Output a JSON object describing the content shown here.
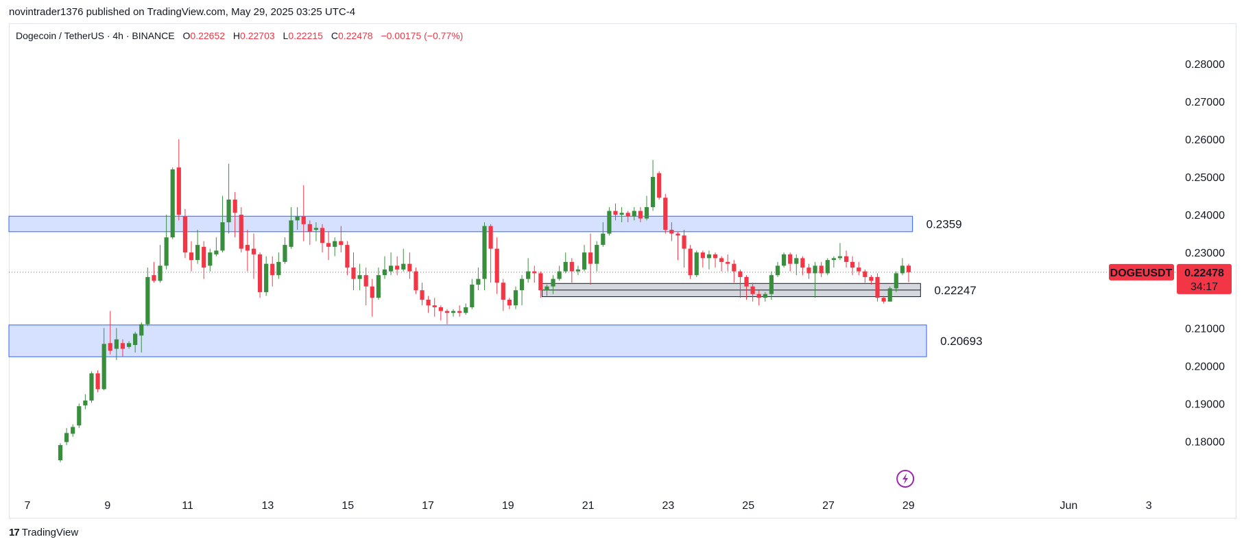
{
  "header": {
    "published_line": "novintrader1376 published on TradingView.com, May 29, 2025 03:25 UTC-4"
  },
  "legend": {
    "symbol": "Dogecoin / TetherUS · 4h · BINANCE",
    "o_label": "O",
    "o_value": "0.22652",
    "h_label": "H",
    "h_value": "0.22703",
    "l_label": "L",
    "l_value": "0.22215",
    "c_label": "C",
    "c_value": "0.22478",
    "change": "−0.00175 (−0.77%)"
  },
  "footer": {
    "brand": "TradingView"
  },
  "colors": {
    "up": "#388e3c",
    "down": "#f23645",
    "zone_fill": "#d6e0ff",
    "zone_border": "#2962ff",
    "gray_zone": "#d1d4dc"
  },
  "chart_data": {
    "type": "candlestick",
    "symbol": "DOGEUSDT",
    "timeframe": "4h",
    "ylim": [
      0.173,
      0.2845
    ],
    "y_ticks": [
      "0.28000",
      "0.27000",
      "0.26000",
      "0.25000",
      "0.24000",
      "0.23000",
      "0.21000",
      "0.20000",
      "0.19000",
      "0.18000"
    ],
    "y_tick_values": [
      0.28,
      0.27,
      0.26,
      0.25,
      0.24,
      0.23,
      0.21,
      0.2,
      0.19,
      0.18
    ],
    "x_ticks": [
      "7",
      "9",
      "11",
      "13",
      "15",
      "17",
      "19",
      "21",
      "23",
      "25",
      "27",
      "29",
      "Jun",
      "3"
    ],
    "x_tick_days": [
      7,
      9,
      11,
      13,
      15,
      17,
      19,
      21,
      23,
      25,
      27,
      29,
      33,
      35
    ],
    "last_price": {
      "symbol_label": "DOGEUSDT",
      "price": "0.22478",
      "countdown": "34:17",
      "value": 0.22478
    },
    "zones": [
      {
        "label": "0.2359",
        "top": 0.2396,
        "bottom": 0.2355,
        "start_day": 6.5,
        "end_day": 29.1,
        "style": "blue"
      },
      {
        "label": "0.22247",
        "top": 0.2218,
        "bottom": 0.2183,
        "start_day": 19.85,
        "end_day": 29.3,
        "style": "gray"
      },
      {
        "label": "0.20693",
        "top": 0.2108,
        "bottom": 0.2024,
        "start_day": 6.5,
        "end_day": 29.45,
        "style": "blue"
      }
    ],
    "candles": [
      [
        0.175,
        0.179,
        0.1745,
        0.1795
      ],
      [
        0.1798,
        0.1822,
        0.179,
        0.1835
      ],
      [
        0.182,
        0.1838,
        0.1812,
        0.1845
      ],
      [
        0.1842,
        0.1893,
        0.1835,
        0.19
      ],
      [
        0.1895,
        0.1908,
        0.1885,
        0.1925
      ],
      [
        0.1908,
        0.198,
        0.1902,
        0.1985
      ],
      [
        0.198,
        0.1938,
        0.193,
        0.1988
      ],
      [
        0.1938,
        0.2058,
        0.1935,
        0.21
      ],
      [
        0.206,
        0.204,
        0.203,
        0.2145
      ],
      [
        0.2045,
        0.207,
        0.2015,
        0.21
      ],
      [
        0.206,
        0.2045,
        0.2025,
        0.207
      ],
      [
        0.205,
        0.206,
        0.2045,
        0.2065
      ],
      [
        0.2055,
        0.2085,
        0.2035,
        0.209
      ],
      [
        0.208,
        0.211,
        0.2035,
        0.2115
      ],
      [
        0.211,
        0.2235,
        0.2105,
        0.226
      ],
      [
        0.224,
        0.2225,
        0.222,
        0.2275
      ],
      [
        0.2225,
        0.2265,
        0.222,
        0.232
      ],
      [
        0.2265,
        0.234,
        0.2255,
        0.24
      ],
      [
        0.234,
        0.252,
        0.2335,
        0.2525
      ],
      [
        0.2525,
        0.24,
        0.2385,
        0.26
      ],
      [
        0.2395,
        0.23,
        0.2285,
        0.2415
      ],
      [
        0.23,
        0.228,
        0.225,
        0.233
      ],
      [
        0.228,
        0.232,
        0.227,
        0.236
      ],
      [
        0.2315,
        0.226,
        0.223,
        0.233
      ],
      [
        0.2265,
        0.23,
        0.225,
        0.231
      ],
      [
        0.2295,
        0.2305,
        0.229,
        0.234
      ],
      [
        0.2305,
        0.238,
        0.23,
        0.245
      ],
      [
        0.238,
        0.244,
        0.235,
        0.2535
      ],
      [
        0.244,
        0.2405,
        0.234,
        0.246
      ],
      [
        0.24,
        0.231,
        0.23,
        0.242
      ],
      [
        0.232,
        0.2305,
        0.225,
        0.236
      ],
      [
        0.231,
        0.2295,
        0.223,
        0.235
      ],
      [
        0.2295,
        0.2195,
        0.218,
        0.23
      ],
      [
        0.2195,
        0.227,
        0.2185,
        0.229
      ],
      [
        0.227,
        0.224,
        0.221,
        0.229
      ],
      [
        0.224,
        0.2275,
        0.223,
        0.23
      ],
      [
        0.2275,
        0.232,
        0.227,
        0.234
      ],
      [
        0.2315,
        0.2385,
        0.231,
        0.242
      ],
      [
        0.2385,
        0.2395,
        0.236,
        0.242
      ],
      [
        0.2395,
        0.2375,
        0.233,
        0.2478
      ],
      [
        0.2375,
        0.2355,
        0.232,
        0.2385
      ],
      [
        0.236,
        0.2365,
        0.233,
        0.238
      ],
      [
        0.2365,
        0.2325,
        0.23,
        0.2375
      ],
      [
        0.2325,
        0.2315,
        0.228,
        0.2355
      ],
      [
        0.2315,
        0.233,
        0.229,
        0.234
      ],
      [
        0.233,
        0.232,
        0.23,
        0.237
      ],
      [
        0.232,
        0.226,
        0.224,
        0.233
      ],
      [
        0.226,
        0.223,
        0.22,
        0.23
      ],
      [
        0.223,
        0.224,
        0.22,
        0.227
      ],
      [
        0.224,
        0.221,
        0.216,
        0.226
      ],
      [
        0.221,
        0.218,
        0.213,
        0.223
      ],
      [
        0.218,
        0.224,
        0.2175,
        0.226
      ],
      [
        0.224,
        0.2255,
        0.223,
        0.229
      ],
      [
        0.225,
        0.2265,
        0.224,
        0.23
      ],
      [
        0.2265,
        0.2255,
        0.224,
        0.229
      ],
      [
        0.2255,
        0.227,
        0.225,
        0.231
      ],
      [
        0.227,
        0.225,
        0.223,
        0.23
      ],
      [
        0.225,
        0.22,
        0.219,
        0.226
      ],
      [
        0.22,
        0.2175,
        0.216,
        0.222
      ],
      [
        0.2175,
        0.216,
        0.214,
        0.2185
      ],
      [
        0.216,
        0.2155,
        0.213,
        0.218
      ],
      [
        0.2155,
        0.2145,
        0.212,
        0.216
      ],
      [
        0.2145,
        0.214,
        0.211,
        0.215
      ],
      [
        0.214,
        0.2145,
        0.213,
        0.215
      ],
      [
        0.2145,
        0.214,
        0.213,
        0.216
      ],
      [
        0.214,
        0.2155,
        0.2135,
        0.2165
      ],
      [
        0.2155,
        0.2215,
        0.215,
        0.223
      ],
      [
        0.2215,
        0.223,
        0.22,
        0.226
      ],
      [
        0.223,
        0.237,
        0.22,
        0.238
      ],
      [
        0.237,
        0.231,
        0.222,
        0.2375
      ],
      [
        0.231,
        0.222,
        0.219,
        0.234
      ],
      [
        0.222,
        0.2175,
        0.2145,
        0.223
      ],
      [
        0.2175,
        0.216,
        0.215,
        0.218
      ],
      [
        0.216,
        0.22,
        0.215,
        0.221
      ],
      [
        0.22,
        0.223,
        0.216,
        0.224
      ],
      [
        0.223,
        0.225,
        0.222,
        0.2285
      ],
      [
        0.225,
        0.2245,
        0.222,
        0.2265
      ],
      [
        0.2245,
        0.22,
        0.218,
        0.225
      ],
      [
        0.22,
        0.221,
        0.2185,
        0.2215
      ],
      [
        0.221,
        0.223,
        0.219,
        0.224
      ],
      [
        0.223,
        0.225,
        0.2225,
        0.2265
      ],
      [
        0.225,
        0.2275,
        0.2245,
        0.23
      ],
      [
        0.2275,
        0.225,
        0.222,
        0.2285
      ],
      [
        0.225,
        0.2255,
        0.224,
        0.2265
      ],
      [
        0.2255,
        0.23,
        0.225,
        0.232
      ],
      [
        0.23,
        0.227,
        0.2215,
        0.235
      ],
      [
        0.227,
        0.232,
        0.225,
        0.233
      ],
      [
        0.232,
        0.235,
        0.2315,
        0.238
      ],
      [
        0.235,
        0.241,
        0.2345,
        0.242
      ],
      [
        0.241,
        0.24,
        0.2385,
        0.243
      ],
      [
        0.24,
        0.2405,
        0.238,
        0.242
      ],
      [
        0.2405,
        0.2395,
        0.238,
        0.241
      ],
      [
        0.2395,
        0.241,
        0.2385,
        0.242
      ],
      [
        0.241,
        0.239,
        0.238,
        0.242
      ],
      [
        0.239,
        0.242,
        0.2385,
        0.245
      ],
      [
        0.242,
        0.25,
        0.241,
        0.2545
      ],
      [
        0.251,
        0.2445,
        0.244,
        0.2515
      ],
      [
        0.2445,
        0.236,
        0.235,
        0.2455
      ],
      [
        0.236,
        0.235,
        0.233,
        0.238
      ],
      [
        0.235,
        0.2345,
        0.228,
        0.2355
      ],
      [
        0.2345,
        0.231,
        0.226,
        0.236
      ],
      [
        0.231,
        0.224,
        0.223,
        0.232
      ],
      [
        0.224,
        0.23,
        0.2235,
        0.2305
      ],
      [
        0.23,
        0.2285,
        0.226,
        0.2305
      ],
      [
        0.2285,
        0.2295,
        0.2255,
        0.2305
      ],
      [
        0.2295,
        0.2285,
        0.226,
        0.23
      ],
      [
        0.2285,
        0.2275,
        0.225,
        0.229
      ],
      [
        0.2275,
        0.227,
        0.225,
        0.2295
      ],
      [
        0.227,
        0.225,
        0.222,
        0.228
      ],
      [
        0.225,
        0.2235,
        0.218,
        0.2255
      ],
      [
        0.2235,
        0.221,
        0.2175,
        0.224
      ],
      [
        0.221,
        0.219,
        0.217,
        0.222
      ],
      [
        0.219,
        0.218,
        0.216,
        0.22
      ],
      [
        0.218,
        0.219,
        0.217,
        0.2195
      ],
      [
        0.219,
        0.224,
        0.2175,
        0.225
      ],
      [
        0.224,
        0.2265,
        0.2235,
        0.2275
      ],
      [
        0.2265,
        0.2295,
        0.226,
        0.23
      ],
      [
        0.2295,
        0.227,
        0.225,
        0.23
      ],
      [
        0.227,
        0.2285,
        0.224,
        0.2295
      ],
      [
        0.2285,
        0.226,
        0.224,
        0.229
      ],
      [
        0.226,
        0.2245,
        0.223,
        0.227
      ],
      [
        0.2245,
        0.2265,
        0.218,
        0.2275
      ],
      [
        0.2265,
        0.2245,
        0.2235,
        0.2275
      ],
      [
        0.2245,
        0.228,
        0.224,
        0.2285
      ],
      [
        0.228,
        0.2285,
        0.226,
        0.229
      ],
      [
        0.2285,
        0.229,
        0.228,
        0.2325
      ],
      [
        0.229,
        0.2275,
        0.226,
        0.2305
      ],
      [
        0.2275,
        0.226,
        0.224,
        0.229
      ],
      [
        0.226,
        0.225,
        0.224,
        0.2275
      ],
      [
        0.225,
        0.2235,
        0.222,
        0.2255
      ],
      [
        0.2235,
        0.2225,
        0.2215,
        0.224
      ],
      [
        0.2235,
        0.218,
        0.217,
        0.2245
      ],
      [
        0.218,
        0.217,
        0.2165,
        0.2185
      ],
      [
        0.217,
        0.2205,
        0.217,
        0.221
      ],
      [
        0.2205,
        0.2245,
        0.2195,
        0.225
      ],
      [
        0.2245,
        0.2265,
        0.224,
        0.2285
      ],
      [
        0.22652,
        0.22478,
        0.22215,
        0.22703
      ]
    ]
  }
}
